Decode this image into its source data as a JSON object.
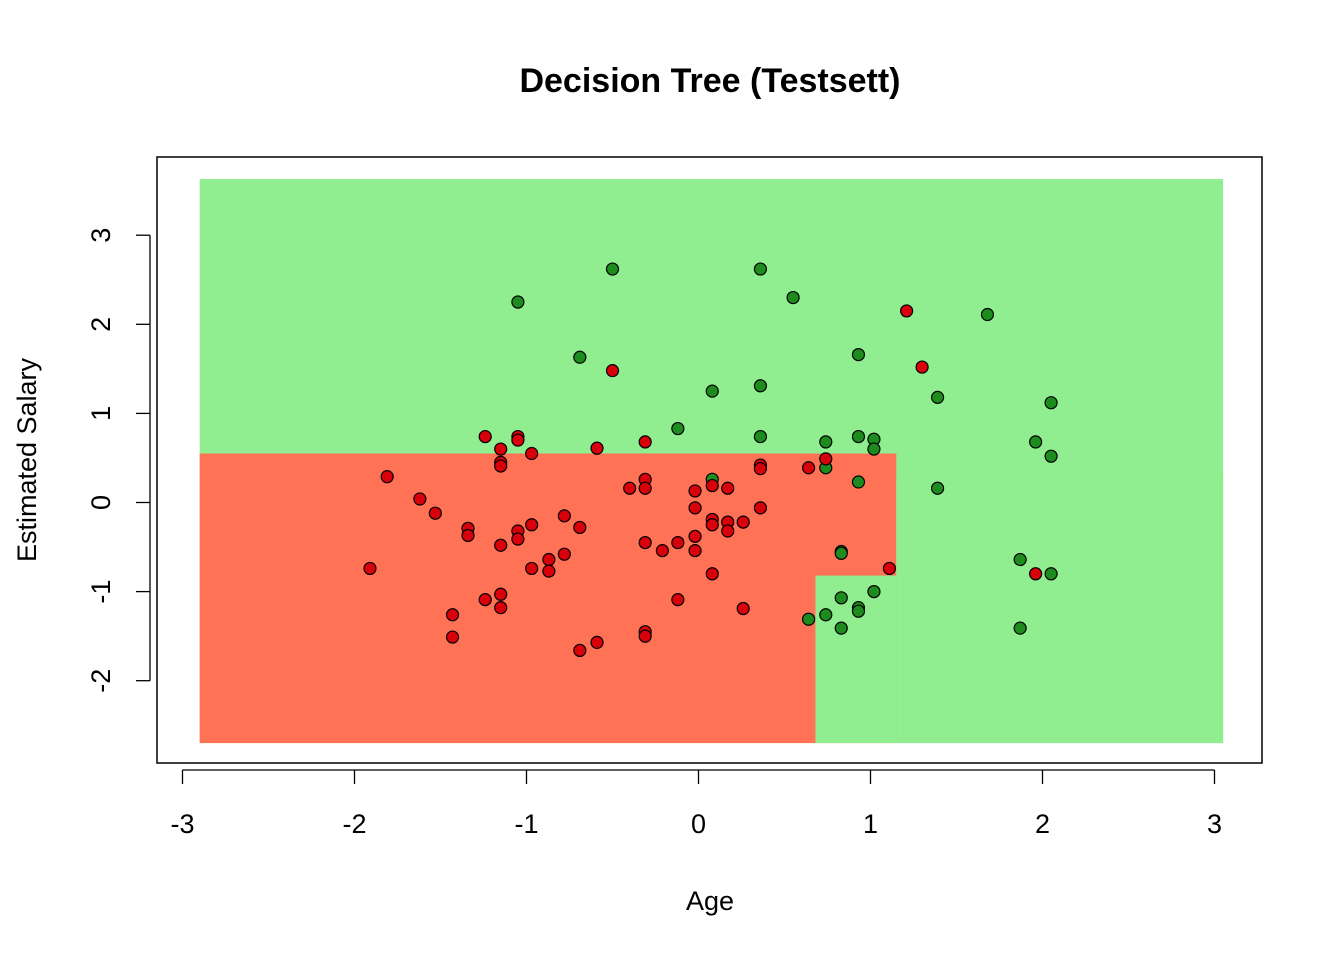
{
  "chart_data": {
    "type": "scatter",
    "title": "Decision Tree (Testsett)",
    "xlabel": "Age",
    "ylabel": "Estimated Salary",
    "xlim": [
      -3.06,
      3.4
    ],
    "ylim": [
      -2.9,
      3.9
    ],
    "x_ticks": [
      -3,
      -2,
      -1,
      0,
      1,
      2,
      3
    ],
    "y_ticks": [
      -2,
      -1,
      0,
      1,
      2,
      3
    ],
    "grid": false,
    "colors": {
      "region_0": "#FF7256",
      "region_1": "#90EE90",
      "point_0": "#D8000B",
      "point_1": "#1E8B1E",
      "point_edge": "#000000"
    },
    "regions": [
      {
        "class": 1,
        "x": [
          -2.9,
          3.05
        ],
        "y": [
          -2.7,
          3.63
        ]
      },
      {
        "class": 0,
        "x": [
          -2.9,
          1.15
        ],
        "y": [
          -2.7,
          0.55
        ]
      },
      {
        "class": 1,
        "x": [
          1.15,
          3.05
        ],
        "y": [
          -2.7,
          0.3
        ]
      },
      {
        "class": 1,
        "x": [
          0.68,
          1.15
        ],
        "y": [
          -2.7,
          -0.82
        ]
      }
    ],
    "points": [
      {
        "x": -0.5,
        "y": 2.62,
        "class": 1
      },
      {
        "x": 0.36,
        "y": 2.62,
        "class": 1
      },
      {
        "x": -1.05,
        "y": 2.25,
        "class": 1
      },
      {
        "x": 0.55,
        "y": 2.3,
        "class": 1
      },
      {
        "x": 1.68,
        "y": 2.11,
        "class": 1
      },
      {
        "x": -0.69,
        "y": 1.63,
        "class": 1
      },
      {
        "x": 0.93,
        "y": 1.66,
        "class": 1
      },
      {
        "x": 0.08,
        "y": 1.25,
        "class": 1
      },
      {
        "x": 0.36,
        "y": 1.31,
        "class": 1
      },
      {
        "x": 1.39,
        "y": 1.18,
        "class": 1
      },
      {
        "x": 2.05,
        "y": 1.12,
        "class": 1
      },
      {
        "x": -0.12,
        "y": 0.83,
        "class": 1
      },
      {
        "x": 0.36,
        "y": 0.74,
        "class": 1
      },
      {
        "x": 0.74,
        "y": 0.68,
        "class": 1
      },
      {
        "x": 0.93,
        "y": 0.74,
        "class": 1
      },
      {
        "x": 1.02,
        "y": 0.71,
        "class": 1
      },
      {
        "x": 1.02,
        "y": 0.6,
        "class": 1
      },
      {
        "x": 1.96,
        "y": 0.68,
        "class": 1
      },
      {
        "x": 2.05,
        "y": 0.52,
        "class": 1
      },
      {
        "x": 0.74,
        "y": 0.39,
        "class": 1
      },
      {
        "x": 0.93,
        "y": 0.23,
        "class": 1
      },
      {
        "x": 1.39,
        "y": 0.16,
        "class": 1
      },
      {
        "x": 0.08,
        "y": 0.26,
        "class": 1
      },
      {
        "x": 0.83,
        "y": -0.55,
        "class": 1
      },
      {
        "x": 0.83,
        "y": -0.57,
        "class": 1
      },
      {
        "x": 1.87,
        "y": -0.64,
        "class": 1
      },
      {
        "x": 2.05,
        "y": -0.8,
        "class": 1
      },
      {
        "x": 1.02,
        "y": -1.0,
        "class": 1
      },
      {
        "x": 0.83,
        "y": -1.07,
        "class": 1
      },
      {
        "x": 0.93,
        "y": -1.18,
        "class": 1
      },
      {
        "x": 0.93,
        "y": -1.22,
        "class": 1
      },
      {
        "x": 0.74,
        "y": -1.26,
        "class": 1
      },
      {
        "x": 0.64,
        "y": -1.31,
        "class": 1
      },
      {
        "x": 0.83,
        "y": -1.41,
        "class": 1
      },
      {
        "x": 1.87,
        "y": -1.41,
        "class": 1
      },
      {
        "x": 1.21,
        "y": 2.15,
        "class": 0
      },
      {
        "x": 1.3,
        "y": 1.52,
        "class": 0
      },
      {
        "x": -0.5,
        "y": 1.48,
        "class": 0
      },
      {
        "x": -1.24,
        "y": 0.74,
        "class": 0
      },
      {
        "x": -1.05,
        "y": 0.74,
        "class": 0
      },
      {
        "x": -1.05,
        "y": 0.7,
        "class": 0
      },
      {
        "x": -0.31,
        "y": 0.68,
        "class": 0
      },
      {
        "x": -1.15,
        "y": 0.6,
        "class": 0
      },
      {
        "x": -0.59,
        "y": 0.61,
        "class": 0
      },
      {
        "x": -0.97,
        "y": 0.55,
        "class": 0
      },
      {
        "x": 0.74,
        "y": 0.49,
        "class": 0
      },
      {
        "x": -1.15,
        "y": 0.45,
        "class": 0
      },
      {
        "x": -1.15,
        "y": 0.41,
        "class": 0
      },
      {
        "x": 0.36,
        "y": 0.42,
        "class": 0
      },
      {
        "x": 0.36,
        "y": 0.38,
        "class": 0
      },
      {
        "x": 0.64,
        "y": 0.39,
        "class": 0
      },
      {
        "x": -1.81,
        "y": 0.29,
        "class": 0
      },
      {
        "x": -0.31,
        "y": 0.26,
        "class": 0
      },
      {
        "x": -0.4,
        "y": 0.16,
        "class": 0
      },
      {
        "x": -0.31,
        "y": 0.16,
        "class": 0
      },
      {
        "x": 0.08,
        "y": 0.19,
        "class": 0
      },
      {
        "x": 0.17,
        "y": 0.16,
        "class": 0
      },
      {
        "x": -0.02,
        "y": 0.13,
        "class": 0
      },
      {
        "x": -1.62,
        "y": 0.04,
        "class": 0
      },
      {
        "x": -1.53,
        "y": -0.12,
        "class": 0
      },
      {
        "x": -0.02,
        "y": -0.06,
        "class": 0
      },
      {
        "x": 0.36,
        "y": -0.06,
        "class": 0
      },
      {
        "x": -0.78,
        "y": -0.15,
        "class": 0
      },
      {
        "x": 0.08,
        "y": -0.19,
        "class": 0
      },
      {
        "x": 0.08,
        "y": -0.25,
        "class": 0
      },
      {
        "x": 0.17,
        "y": -0.22,
        "class": 0
      },
      {
        "x": 0.26,
        "y": -0.22,
        "class": 0
      },
      {
        "x": -0.97,
        "y": -0.25,
        "class": 0
      },
      {
        "x": -0.69,
        "y": -0.28,
        "class": 0
      },
      {
        "x": 0.17,
        "y": -0.32,
        "class": 0
      },
      {
        "x": -1.34,
        "y": -0.29,
        "class": 0
      },
      {
        "x": -1.34,
        "y": -0.37,
        "class": 0
      },
      {
        "x": -1.05,
        "y": -0.32,
        "class": 0
      },
      {
        "x": -1.05,
        "y": -0.41,
        "class": 0
      },
      {
        "x": -0.02,
        "y": -0.38,
        "class": 0
      },
      {
        "x": -0.31,
        "y": -0.45,
        "class": 0
      },
      {
        "x": -0.12,
        "y": -0.45,
        "class": 0
      },
      {
        "x": -1.15,
        "y": -0.48,
        "class": 0
      },
      {
        "x": -0.21,
        "y": -0.54,
        "class": 0
      },
      {
        "x": -0.02,
        "y": -0.54,
        "class": 0
      },
      {
        "x": -0.78,
        "y": -0.58,
        "class": 0
      },
      {
        "x": -0.87,
        "y": -0.64,
        "class": 0
      },
      {
        "x": -1.91,
        "y": -0.74,
        "class": 0
      },
      {
        "x": -0.97,
        "y": -0.74,
        "class": 0
      },
      {
        "x": -0.87,
        "y": -0.77,
        "class": 0
      },
      {
        "x": 0.08,
        "y": -0.8,
        "class": 0
      },
      {
        "x": 1.11,
        "y": -0.74,
        "class": 0
      },
      {
        "x": 1.96,
        "y": -0.8,
        "class": 0
      },
      {
        "x": -1.15,
        "y": -1.03,
        "class": 0
      },
      {
        "x": -1.24,
        "y": -1.09,
        "class": 0
      },
      {
        "x": -0.12,
        "y": -1.09,
        "class": 0
      },
      {
        "x": -1.15,
        "y": -1.18,
        "class": 0
      },
      {
        "x": 0.26,
        "y": -1.19,
        "class": 0
      },
      {
        "x": -1.43,
        "y": -1.26,
        "class": 0
      },
      {
        "x": -0.31,
        "y": -1.45,
        "class": 0
      },
      {
        "x": -0.31,
        "y": -1.5,
        "class": 0
      },
      {
        "x": -1.43,
        "y": -1.51,
        "class": 0
      },
      {
        "x": -0.59,
        "y": -1.57,
        "class": 0
      },
      {
        "x": -0.69,
        "y": -1.66,
        "class": 0
      }
    ]
  }
}
